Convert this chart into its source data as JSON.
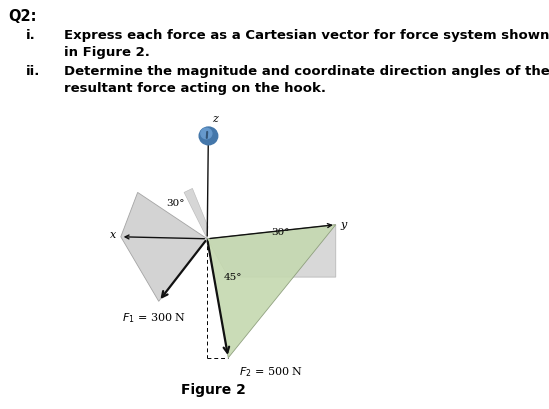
{
  "title": "Figure 2",
  "q2_label": "Q2:",
  "item_i_num": "i.",
  "item_i_text": "Express each force as a Cartesian vector for force system shown\nin Figure 2.",
  "item_ii_num": "ii.",
  "item_ii_text": "Determine the magnitude and coordinate direction angles of the\nresultant force acting on the hook.",
  "F1_label": "$F_1$ = 300 N",
  "F2_label": "$F_2$ = 500 N",
  "angle1_label": "30°",
  "angle2_label": "30°",
  "angle3_label": "45°",
  "axis_x": "x",
  "axis_y": "y",
  "axis_z": "z",
  "bg_color": "#ffffff",
  "text_color": "#000000",
  "arrow_color": "#111111",
  "plane_color_gray": "#cccccc",
  "plane_color_green": "#c5d9b0",
  "plane_color_gray2": "#d5d5d5",
  "hook_color_main": "#5588cc",
  "hook_color_dark": "#336699",
  "ox": 0.485,
  "oy": 0.415
}
